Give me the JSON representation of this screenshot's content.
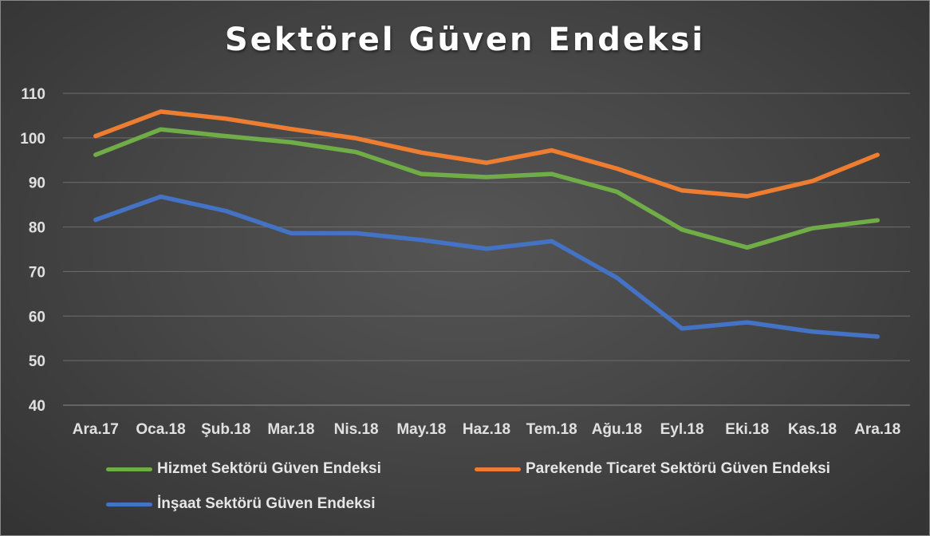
{
  "chart_data": {
    "type": "line",
    "title": "Sektörel Güven Endeksi",
    "xlabel": "",
    "ylabel": "",
    "categories": [
      "Ara.17",
      "Oca.18",
      "Şub.18",
      "Mar.18",
      "Nis.18",
      "May.18",
      "Haz.18",
      "Tem.18",
      "Ağu.18",
      "Eyl.18",
      "Eki.18",
      "Kas.18",
      "Ara.18"
    ],
    "ylim": [
      40,
      110
    ],
    "yticks": [
      40,
      50,
      60,
      70,
      80,
      90,
      100,
      110
    ],
    "grid": true,
    "legend_position": "bottom",
    "series": [
      {
        "name": "Hizmet Sektörü Güven Endeksi",
        "color": "#70ad47",
        "values": [
          96.2,
          101.9,
          100.4,
          99.0,
          96.8,
          91.9,
          91.2,
          91.9,
          87.9,
          79.4,
          75.4,
          79.7,
          81.5
        ]
      },
      {
        "name": "Parekende Ticaret Sektörü Güven Endeksi",
        "color": "#ed7d31",
        "values": [
          100.4,
          105.9,
          104.3,
          102.0,
          99.9,
          96.7,
          94.4,
          97.2,
          93.1,
          88.2,
          86.9,
          90.3,
          96.2
        ]
      },
      {
        "name": "İnşaat Sektörü Güven Endeksi",
        "color": "#4472c4",
        "values": [
          81.6,
          86.8,
          83.6,
          78.6,
          78.6,
          77.1,
          75.1,
          76.8,
          68.6,
          57.2,
          58.6,
          56.5,
          55.4
        ]
      }
    ]
  }
}
